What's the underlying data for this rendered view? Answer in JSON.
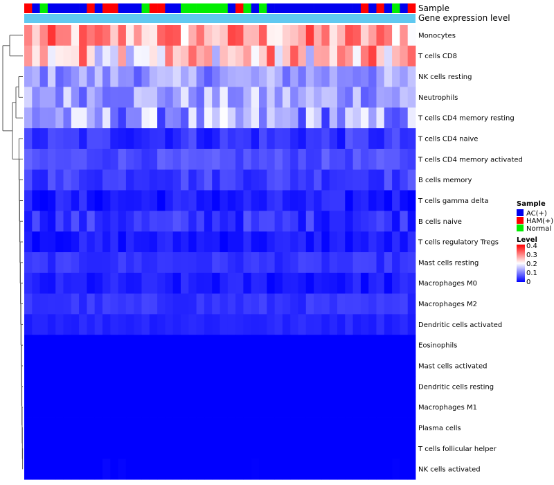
{
  "chart_data": {
    "type": "heatmap",
    "annotation_labels": {
      "sample": "Sample",
      "expression": "Gene expression level"
    },
    "sample_groups": [
      "AC(+)",
      "HAM(+)",
      "Normal"
    ],
    "sample_colors": {
      "AC(+)": "#0000ee",
      "HAM(+)": "#ff0000",
      "Normal": "#00ee00"
    },
    "expression_color": "#5fc8f0",
    "column_samples": [
      "HAM(+)",
      "AC(+)",
      "Normal",
      "AC(+)",
      "AC(+)",
      "AC(+)",
      "AC(+)",
      "AC(+)",
      "HAM(+)",
      "AC(+)",
      "HAM(+)",
      "HAM(+)",
      "AC(+)",
      "AC(+)",
      "AC(+)",
      "Normal",
      "HAM(+)",
      "HAM(+)",
      "AC(+)",
      "AC(+)",
      "Normal",
      "Normal",
      "Normal",
      "Normal",
      "Normal",
      "Normal",
      "AC(+)",
      "HAM(+)",
      "Normal",
      "AC(+)",
      "Normal",
      "AC(+)",
      "AC(+)",
      "AC(+)",
      "AC(+)",
      "AC(+)",
      "AC(+)",
      "AC(+)",
      "AC(+)",
      "AC(+)",
      "AC(+)",
      "AC(+)",
      "AC(+)",
      "HAM(+)",
      "AC(+)",
      "HAM(+)",
      "AC(+)",
      "Normal",
      "AC(+)",
      "HAM(+)"
    ],
    "rows": [
      "Monocytes",
      "T cells CD8",
      "NK cells resting",
      "Neutrophils",
      "T cells CD4 memory resting",
      "T cells CD4 naive",
      "T cells CD4 memory activated",
      "B cells memory",
      "T cells gamma delta",
      "B cells naive",
      "T cells regulatory  Tregs",
      "Mast cells resting",
      "Macrophages M0",
      "Macrophages M2",
      "Dendritic cells activated",
      "Eosinophils",
      "Mast cells activated",
      "Dendritic cells resting",
      "Macrophages M1",
      "Plasma cells",
      "T cells follicular helper",
      "NK cells activated"
    ],
    "row_base_levels": [
      0.27,
      0.24,
      0.12,
      0.13,
      0.12,
      0.04,
      0.06,
      0.05,
      0.02,
      0.04,
      0.02,
      0.04,
      0.02,
      0.04,
      0.03,
      0.0,
      0.0,
      0.0,
      0.0,
      0.0,
      0.0,
      0.003
    ],
    "row_spreads": [
      0.09,
      0.11,
      0.05,
      0.06,
      0.08,
      0.03,
      0.02,
      0.025,
      0.025,
      0.03,
      0.02,
      0.015,
      0.02,
      0.015,
      0.01,
      0.0,
      0.0,
      0.0,
      0.0,
      0.0,
      0.0,
      0.01
    ],
    "legend": {
      "sample_title": "Sample",
      "level_title": "Level",
      "level_ticks": [
        "0.4",
        "0.3",
        "0.2",
        "0.1",
        "0"
      ],
      "level_range": [
        0,
        0.4
      ],
      "color_low": "#0000ff",
      "color_mid": "#ffffff",
      "color_high": "#ff0000"
    }
  }
}
